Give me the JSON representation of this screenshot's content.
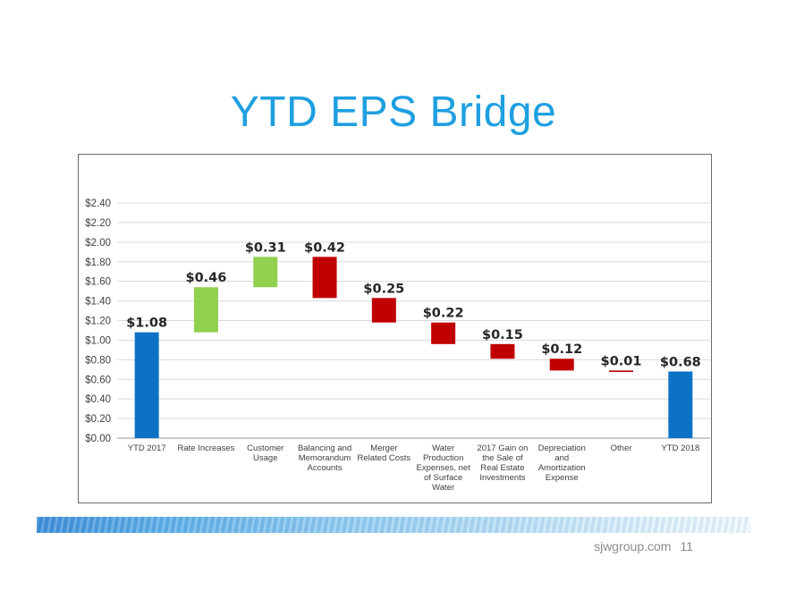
{
  "title": "YTD EPS Bridge",
  "footer": {
    "site": "sjwgroup.com",
    "page": "11"
  },
  "colors": {
    "total": "#0d72c6",
    "increase": "#92d050",
    "decrease": "#c00000",
    "title": "#1e9fe0"
  },
  "chart_data": {
    "type": "bar",
    "subtype": "waterfall",
    "title": "YTD EPS Bridge",
    "xlabel": "",
    "ylabel": "",
    "ylim": [
      0,
      2.4
    ],
    "yticks": [
      "$0.00",
      "$0.20",
      "$0.40",
      "$0.60",
      "$0.80",
      "$1.00",
      "$1.20",
      "$1.40",
      "$1.60",
      "$1.80",
      "$2.00",
      "$2.20",
      "$2.40"
    ],
    "grid": true,
    "categories": [
      [
        "YTD 2017"
      ],
      [
        "Rate Increases"
      ],
      [
        "Customer",
        "Usage"
      ],
      [
        "Balancing and",
        "Memorandum",
        "Accounts"
      ],
      [
        "Merger",
        "Related Costs"
      ],
      [
        "Water",
        "Production",
        "Expenses, net",
        "of Surface",
        "Water"
      ],
      [
        "2017 Gain on",
        "the Sale of",
        "Real Estate",
        "Investments"
      ],
      [
        "Depreciation",
        "and",
        "Amortization",
        "Expense"
      ],
      [
        "Other"
      ],
      [
        "YTD 2018"
      ]
    ],
    "bars": [
      {
        "kind": "total",
        "start": 0,
        "end": 1.08,
        "label": "$1.08"
      },
      {
        "kind": "increase",
        "start": 1.08,
        "end": 1.54,
        "label": "$0.46"
      },
      {
        "kind": "increase",
        "start": 1.54,
        "end": 1.85,
        "label": "$0.31"
      },
      {
        "kind": "decrease",
        "start": 1.85,
        "end": 1.43,
        "label": "$0.42"
      },
      {
        "kind": "decrease",
        "start": 1.43,
        "end": 1.18,
        "label": "$0.25"
      },
      {
        "kind": "decrease",
        "start": 1.18,
        "end": 0.96,
        "label": "$0.22"
      },
      {
        "kind": "decrease",
        "start": 0.96,
        "end": 0.81,
        "label": "$0.15"
      },
      {
        "kind": "decrease",
        "start": 0.81,
        "end": 0.69,
        "label": "$0.12"
      },
      {
        "kind": "decrease",
        "start": 0.69,
        "end": 0.68,
        "label": "$0.01"
      },
      {
        "kind": "total",
        "start": 0,
        "end": 0.68,
        "label": "$0.68"
      }
    ]
  }
}
